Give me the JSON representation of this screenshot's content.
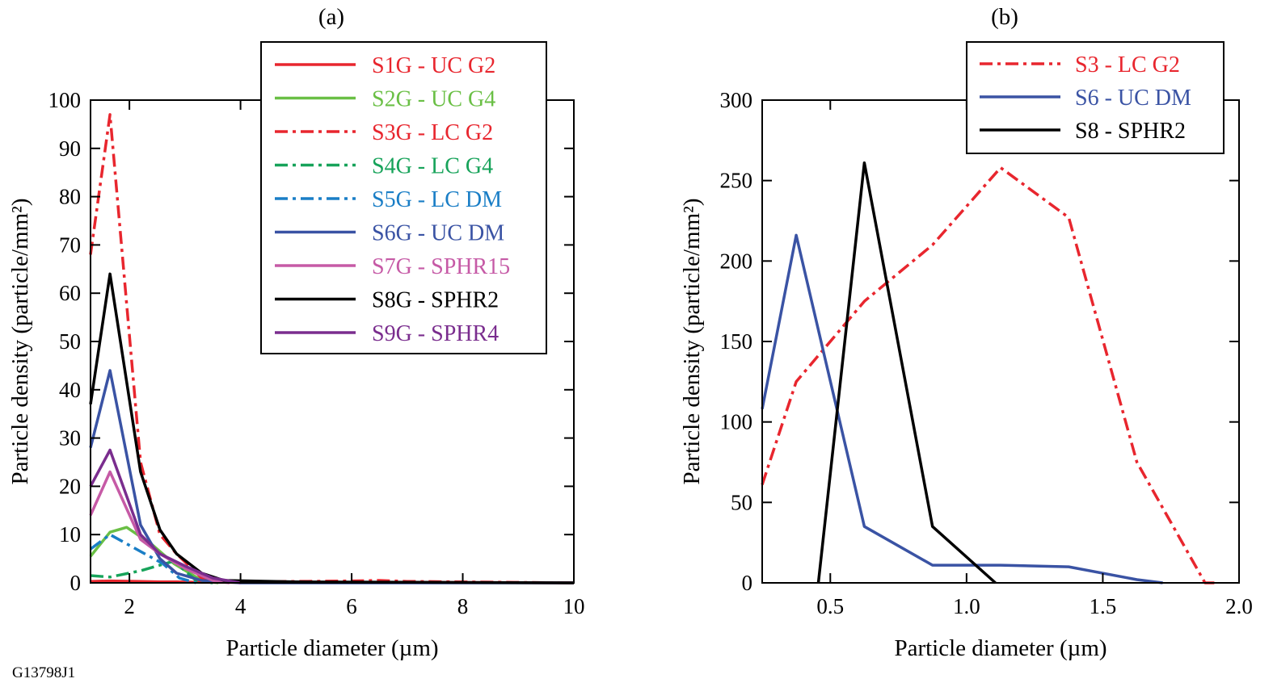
{
  "figure_id": "G13798J1",
  "chart_data": [
    {
      "type": "line",
      "title": "(a)",
      "xlabel": "Particle diameter (µm)",
      "ylabel": "Particle density (particle/mm²)",
      "xlim": [
        1.3,
        10
      ],
      "ylim": [
        0,
        100
      ],
      "xticks": [
        2,
        4,
        6,
        8,
        10
      ],
      "yticks": [
        0,
        10,
        20,
        30,
        40,
        50,
        60,
        70,
        80,
        90,
        100
      ],
      "grid": false,
      "legend_position": "top-right",
      "series": [
        {
          "name": "S1G - UC G2",
          "color": "#e8262e",
          "dash": "solid",
          "x": [
            1.3,
            1.65,
            2.2,
            2.55,
            2.85,
            3.3,
            4,
            6,
            7,
            10
          ],
          "y": [
            0.3,
            0.4,
            0.3,
            0.2,
            0.2,
            0.1,
            0.1,
            0.1,
            0.1,
            0
          ]
        },
        {
          "name": "S2G - UC G4",
          "color": "#6abf45",
          "dash": "solid",
          "x": [
            1.3,
            1.65,
            1.95,
            2.4,
            2.8,
            3.3,
            3.6
          ],
          "y": [
            5.5,
            10.5,
            11.5,
            8,
            4,
            0.5,
            0
          ]
        },
        {
          "name": "S3G - LC G2",
          "color": "#e8262e",
          "dash": "dashdot",
          "x": [
            1.3,
            1.65,
            2.2,
            2.55,
            2.85,
            3.3,
            4,
            6,
            6.5,
            7,
            10
          ],
          "y": [
            68,
            97,
            25,
            10,
            6,
            1,
            0.2,
            0.4,
            0.5,
            0.3,
            0
          ]
        },
        {
          "name": "S4G - LC G4",
          "color": "#17a35a",
          "dash": "dashdot",
          "x": [
            1.3,
            1.65,
            2.2,
            2.8,
            3.2,
            3.5
          ],
          "y": [
            1.5,
            1.2,
            2.5,
            4.5,
            0.5,
            0
          ]
        },
        {
          "name": "S5G - LC DM",
          "color": "#1a7ec6",
          "dash": "dashdot",
          "x": [
            1.3,
            1.65,
            2.2,
            2.6,
            2.9,
            3.2
          ],
          "y": [
            7,
            10,
            6.5,
            4,
            1,
            0
          ]
        },
        {
          "name": "S6G - UC DM",
          "color": "#3a53a4",
          "dash": "solid",
          "x": [
            1.3,
            1.65,
            2.2,
            2.55,
            2.85,
            3.3,
            4,
            10
          ],
          "y": [
            28,
            44,
            12,
            5,
            2,
            0.5,
            0,
            0
          ]
        },
        {
          "name": "S7G - SPHR15",
          "color": "#c65aa6",
          "dash": "solid",
          "x": [
            1.3,
            1.65,
            2.2,
            2.55,
            3,
            3.5,
            3.8
          ],
          "y": [
            14,
            23,
            9,
            6,
            3,
            0.5,
            0
          ]
        },
        {
          "name": "S8G - SPHR2",
          "color": "#000000",
          "dash": "solid",
          "x": [
            1.3,
            1.65,
            2.2,
            2.55,
            2.85,
            3.3,
            3.7,
            5,
            10
          ],
          "y": [
            37,
            64,
            23,
            11,
            6,
            2,
            0.5,
            0.2,
            0
          ]
        },
        {
          "name": "S9G - SPHR4",
          "color": "#7a2d8e",
          "dash": "solid",
          "x": [
            1.3,
            1.65,
            2.2,
            2.55,
            3,
            3.5,
            4
          ],
          "y": [
            20,
            27.5,
            10,
            6,
            3.5,
            1,
            0
          ]
        }
      ]
    },
    {
      "type": "line",
      "title": "(b)",
      "xlabel": "Particle diameter (µm)",
      "ylabel": "Particle density (particle/mm²)",
      "xlim": [
        0.25,
        2.0
      ],
      "ylim": [
        0,
        300
      ],
      "xticks": [
        "0.5",
        "1.0",
        "1.5",
        "2.0"
      ],
      "yticks": [
        0,
        50,
        100,
        150,
        200,
        250,
        300
      ],
      "grid": false,
      "legend_position": "top-right",
      "series": [
        {
          "name": "S3 - LC G2",
          "color": "#e8262e",
          "dash": "dashdot",
          "x": [
            0.25,
            0.375,
            0.625,
            0.875,
            1.125,
            1.375,
            1.625,
            1.875,
            1.92
          ],
          "y": [
            61,
            125,
            175,
            210,
            258,
            227,
            75,
            0,
            0
          ]
        },
        {
          "name": "S6 - UC DM",
          "color": "#3a53a4",
          "dash": "solid",
          "x": [
            0.25,
            0.375,
            0.625,
            0.875,
            1.125,
            1.375,
            1.625,
            1.72
          ],
          "y": [
            108,
            216,
            35,
            11,
            11,
            10,
            2,
            0
          ]
        },
        {
          "name": "S8 - SPHR2",
          "color": "#000000",
          "dash": "solid",
          "x": [
            0.456,
            0.625,
            0.875,
            1.106
          ],
          "y": [
            0,
            261,
            35,
            0
          ]
        }
      ]
    }
  ]
}
